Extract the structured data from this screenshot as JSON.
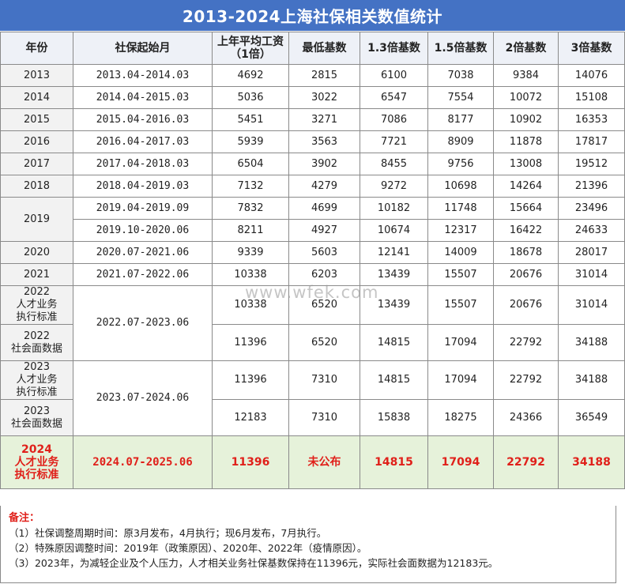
{
  "title": "2013-2024上海社保相关数值统计",
  "watermark": "www.wfek.com",
  "headers": [
    "年份",
    "社保起始月",
    "上年平均工资\n（1倍）",
    "最低基数",
    "1.3倍基数",
    "1.5倍基数",
    "2倍基数",
    "3倍基数"
  ],
  "rows": [
    {
      "year": "2013",
      "period": "2013.04-2014.03",
      "values": [
        "4692",
        "2815",
        "6100",
        "7038",
        "9384",
        "14076"
      ]
    },
    {
      "year": "2014",
      "period": "2014.04-2015.03",
      "values": [
        "5036",
        "3022",
        "6547",
        "7554",
        "10072",
        "15108"
      ]
    },
    {
      "year": "2015",
      "period": "2015.04-2016.03",
      "values": [
        "5451",
        "3271",
        "7086",
        "8177",
        "10902",
        "16353"
      ]
    },
    {
      "year": "2016",
      "period": "2016.04-2017.03",
      "values": [
        "5939",
        "3563",
        "7721",
        "8909",
        "11878",
        "17817"
      ]
    },
    {
      "year": "2017",
      "period": "2017.04-2018.03",
      "values": [
        "6504",
        "3902",
        "8455",
        "9756",
        "13008",
        "19512"
      ]
    },
    {
      "year": "2018",
      "period": "2018.04-2019.03",
      "values": [
        "7132",
        "4279",
        "9272",
        "10698",
        "14264",
        "21396"
      ]
    },
    {
      "year": "2019",
      "period": "2019.04-2019.09",
      "values": [
        "7832",
        "4699",
        "10182",
        "11748",
        "15664",
        "23496"
      ]
    },
    {
      "year": "",
      "period": "2019.10-2020.06",
      "values": [
        "8211",
        "4927",
        "10674",
        "12317",
        "16422",
        "24633"
      ]
    },
    {
      "year": "2020",
      "period": "2020.07-2021.06",
      "values": [
        "9339",
        "5603",
        "12141",
        "14009",
        "18678",
        "28017"
      ]
    },
    {
      "year": "2021",
      "period": "2021.07-2022.06",
      "values": [
        "10338",
        "6203",
        "13439",
        "15507",
        "20676",
        "31014"
      ]
    },
    {
      "year": "2022\n人才业务\n执行标准",
      "period": "2022.07-2023.06",
      "values": [
        "10338",
        "6520",
        "13439",
        "15507",
        "20676",
        "31014"
      ]
    },
    {
      "year": "2022\n社会面数据",
      "period": "",
      "values": [
        "11396",
        "6520",
        "14815",
        "17094",
        "22792",
        "34188"
      ]
    },
    {
      "year": "2023\n人才业务\n执行标准",
      "period": "2023.07-2024.06",
      "values": [
        "11396",
        "7310",
        "14815",
        "17094",
        "22792",
        "34188"
      ]
    },
    {
      "year": "2023\n社会面数据",
      "period": "",
      "values": [
        "12183",
        "7310",
        "15838",
        "18275",
        "24366",
        "36549"
      ]
    },
    {
      "year": "2024\n人才业务\n执行标准",
      "period": "2024.07-2025.06",
      "values": [
        "11396",
        "未公布",
        "14815",
        "17094",
        "22792",
        "34188"
      ]
    }
  ],
  "notes": {
    "head": "备注：",
    "lines": [
      "（1）社保调整周期时间：原3月发布，4月执行；现6月发布，7月执行。",
      "（2）特殊原因调整时间：2019年（政策原因）、2020年、2022年（疫情原因）。",
      "（3）2023年，为减轻企业及个人压力，人才相关业务社保基数保持在11396元，实际社会面数据为12183元。"
    ]
  },
  "colors": {
    "title_bg": "#4472c4",
    "highlight_bg": "#e6f2da",
    "highlight_text": "#e0201a"
  }
}
